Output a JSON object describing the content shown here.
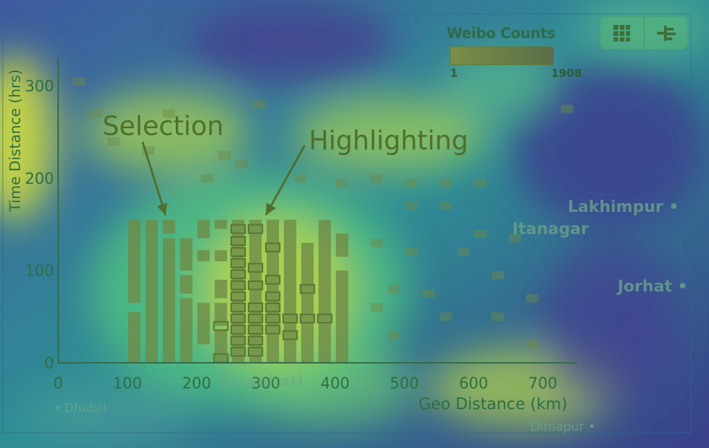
{
  "legend": {
    "title": "Weibo Counts",
    "min": "1",
    "max": "1908"
  },
  "toolbar": {
    "buttons": [
      {
        "name": "grid-view-button",
        "icon": "grid-icon"
      },
      {
        "name": "tree-view-button",
        "icon": "tree-icon"
      }
    ]
  },
  "map_labels": {
    "lakhimpur": "Lakhimpur",
    "itanagar": "Itanagar",
    "jorhat": "Jorhat",
    "guwahati": "Guwahati",
    "dhubri": "Dhubri",
    "dimapur": "Dimapur"
  },
  "colors": {
    "bar": "#6e8a46",
    "highlight_stroke": "#5c7735",
    "annotation_text": "#4f6f2e",
    "axis_text": "#2f6e43",
    "axis_line": "#346a48"
  },
  "chart_data": {
    "type": "bar",
    "xlabel": "Geo Distance (km)",
    "ylabel": "Time Distance (hrs)",
    "xlim": [
      0,
      750
    ],
    "ylim": [
      0,
      330
    ],
    "xticks": [
      0,
      100,
      200,
      300,
      400,
      500,
      600,
      700
    ],
    "yticks": [
      0,
      100,
      200,
      300
    ],
    "annotations": [
      {
        "text": "Selection",
        "point_at": [
          155,
          160
        ]
      },
      {
        "text": "Highlighting",
        "point_at": [
          300,
          160
        ]
      }
    ],
    "selection_range": {
      "x": [
        100,
        450
      ],
      "y": [
        0,
        155
      ]
    },
    "bins": [
      {
        "x": 110,
        "y_segments": [
          [
            0,
            55
          ],
          [
            65,
            155
          ]
        ]
      },
      {
        "x": 135,
        "y_segments": [
          [
            0,
            155
          ]
        ]
      },
      {
        "x": 160,
        "y_segments": [
          [
            0,
            135
          ],
          [
            140,
            155
          ]
        ]
      },
      {
        "x": 185,
        "y_segments": [
          [
            0,
            70
          ],
          [
            75,
            95
          ],
          [
            100,
            135
          ]
        ]
      },
      {
        "x": 210,
        "y_segments": [
          [
            20,
            65
          ],
          [
            110,
            122
          ],
          [
            135,
            155
          ]
        ]
      },
      {
        "x": 235,
        "y_segments": [
          [
            0,
            35
          ],
          [
            40,
            65
          ],
          [
            70,
            90
          ],
          [
            110,
            122
          ],
          [
            145,
            155
          ]
        ]
      },
      {
        "x": 260,
        "y_segments": [
          [
            0,
            155
          ]
        ]
      },
      {
        "x": 285,
        "y_segments": [
          [
            0,
            155
          ]
        ]
      },
      {
        "x": 310,
        "y_segments": [
          [
            0,
            155
          ]
        ]
      },
      {
        "x": 335,
        "y_segments": [
          [
            0,
            155
          ]
        ]
      },
      {
        "x": 360,
        "y_segments": [
          [
            0,
            130
          ]
        ]
      },
      {
        "x": 385,
        "y_segments": [
          [
            0,
            155
          ]
        ]
      },
      {
        "x": 410,
        "y_segments": [
          [
            0,
            100
          ],
          [
            115,
            140
          ]
        ]
      }
    ],
    "highlighted": [
      {
        "x": 235,
        "y": 40
      },
      {
        "x": 235,
        "y": 5
      },
      {
        "x": 260,
        "y": 145
      },
      {
        "x": 260,
        "y": 132
      },
      {
        "x": 260,
        "y": 120
      },
      {
        "x": 260,
        "y": 108
      },
      {
        "x": 260,
        "y": 96
      },
      {
        "x": 260,
        "y": 84
      },
      {
        "x": 260,
        "y": 72
      },
      {
        "x": 260,
        "y": 60
      },
      {
        "x": 260,
        "y": 48
      },
      {
        "x": 260,
        "y": 36
      },
      {
        "x": 260,
        "y": 24
      },
      {
        "x": 260,
        "y": 12
      },
      {
        "x": 285,
        "y": 145
      },
      {
        "x": 285,
        "y": 103
      },
      {
        "x": 285,
        "y": 84
      },
      {
        "x": 285,
        "y": 60
      },
      {
        "x": 285,
        "y": 48
      },
      {
        "x": 285,
        "y": 36
      },
      {
        "x": 285,
        "y": 24
      },
      {
        "x": 285,
        "y": 12
      },
      {
        "x": 310,
        "y": 125
      },
      {
        "x": 310,
        "y": 90
      },
      {
        "x": 310,
        "y": 72
      },
      {
        "x": 310,
        "y": 60
      },
      {
        "x": 310,
        "y": 48
      },
      {
        "x": 310,
        "y": 36
      },
      {
        "x": 335,
        "y": 48
      },
      {
        "x": 335,
        "y": 30
      },
      {
        "x": 360,
        "y": 80
      },
      {
        "x": 360,
        "y": 48
      },
      {
        "x": 385,
        "y": 48
      }
    ],
    "background_cells": [
      {
        "x": 30,
        "y": 305
      },
      {
        "x": 55,
        "y": 270
      },
      {
        "x": 80,
        "y": 240
      },
      {
        "x": 130,
        "y": 230
      },
      {
        "x": 160,
        "y": 270
      },
      {
        "x": 215,
        "y": 200
      },
      {
        "x": 240,
        "y": 225
      },
      {
        "x": 265,
        "y": 215
      },
      {
        "x": 290,
        "y": 280
      },
      {
        "x": 350,
        "y": 200
      },
      {
        "x": 410,
        "y": 195
      },
      {
        "x": 460,
        "y": 200
      },
      {
        "x": 510,
        "y": 195
      },
      {
        "x": 560,
        "y": 195
      },
      {
        "x": 610,
        "y": 195
      },
      {
        "x": 510,
        "y": 170
      },
      {
        "x": 560,
        "y": 170
      },
      {
        "x": 610,
        "y": 140
      },
      {
        "x": 460,
        "y": 130
      },
      {
        "x": 510,
        "y": 120
      },
      {
        "x": 585,
        "y": 120
      },
      {
        "x": 635,
        "y": 95
      },
      {
        "x": 685,
        "y": 70
      },
      {
        "x": 485,
        "y": 80
      },
      {
        "x": 535,
        "y": 75
      },
      {
        "x": 460,
        "y": 60
      },
      {
        "x": 560,
        "y": 50
      },
      {
        "x": 635,
        "y": 50
      },
      {
        "x": 485,
        "y": 30
      },
      {
        "x": 685,
        "y": 20
      },
      {
        "x": 735,
        "y": 275
      },
      {
        "x": 660,
        "y": 135
      }
    ]
  }
}
